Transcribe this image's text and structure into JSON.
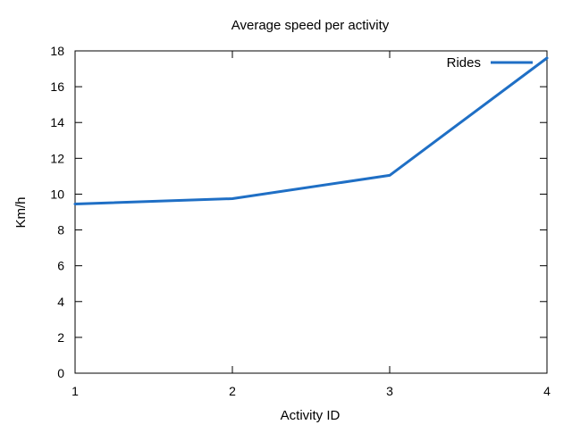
{
  "chart_data": {
    "type": "line",
    "title": "Average speed per activity",
    "xlabel": "Activity ID",
    "ylabel": "Km/h",
    "xlim": [
      1,
      4
    ],
    "ylim": [
      0,
      18
    ],
    "xticks": [
      "1",
      "2",
      "3",
      "4"
    ],
    "yticks": [
      "0",
      "2",
      "4",
      "6",
      "8",
      "10",
      "12",
      "14",
      "16",
      "18"
    ],
    "grid": false,
    "legend_position": "top-right",
    "series": [
      {
        "name": "Rides",
        "color": "#1f6fc5",
        "points": [
          {
            "x": 1,
            "y": 9.45
          },
          {
            "x": 2,
            "y": 9.75
          },
          {
            "x": 3,
            "y": 11.05
          },
          {
            "x": 4,
            "y": 17.6
          }
        ]
      }
    ]
  }
}
